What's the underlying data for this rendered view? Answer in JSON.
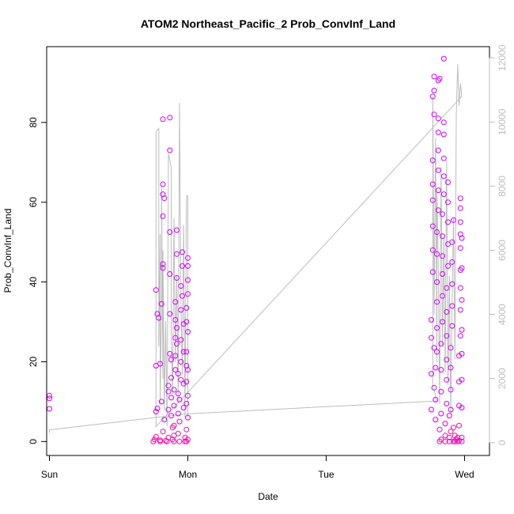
{
  "chart_data": {
    "type": "scatter",
    "title": "ATOM2 Northeast_Pacific_2 Prob_ConvInf_Land",
    "xlabel": "Date",
    "ylabel": "Prob_ConvInf_Land",
    "x_ticks": [
      "Sun",
      "Mon",
      "Tue",
      "Wed"
    ],
    "x_range_days": [
      -0.02,
      3.18
    ],
    "ylim": [
      -3.5,
      99
    ],
    "y_ticks": [
      0,
      20,
      40,
      60,
      80
    ],
    "y2lim": [
      -400,
      12350
    ],
    "y2_ticks": [
      0,
      2000,
      4000,
      6000,
      8000,
      10000,
      12000
    ],
    "colors": {
      "points_low": "#ff00aa",
      "points_high": "#cc00ff",
      "line": "#bdbdbd",
      "right_axis": "#bdbdbd"
    },
    "series": [
      {
        "kind": "points",
        "points": [
          [
            0.0,
            11.5
          ],
          [
            0.0,
            10.8
          ],
          [
            0.0,
            8.2
          ],
          [
            0.75,
            0.0
          ],
          [
            0.76,
            0.5
          ],
          [
            0.77,
            1.2
          ],
          [
            0.77,
            7.5
          ],
          [
            0.78,
            8.3
          ],
          [
            0.77,
            19.0
          ],
          [
            0.77,
            38.0
          ],
          [
            0.78,
            32.0
          ],
          [
            0.79,
            31.0
          ],
          [
            0.8,
            0.0
          ],
          [
            0.8,
            0.3
          ],
          [
            0.8,
            19.5
          ],
          [
            0.81,
            34.5
          ],
          [
            0.82,
            44.5
          ],
          [
            0.82,
            43.5
          ],
          [
            0.82,
            56.5
          ],
          [
            0.83,
            61.0
          ],
          [
            0.82,
            62.0
          ],
          [
            0.82,
            64.5
          ],
          [
            0.82,
            80.8
          ],
          [
            0.81,
            10.0
          ],
          [
            0.82,
            2.5
          ],
          [
            0.83,
            5.5
          ],
          [
            0.84,
            0.2
          ],
          [
            0.85,
            0.0
          ],
          [
            0.86,
            1.0
          ],
          [
            0.86,
            8.0
          ],
          [
            0.86,
            12.5
          ],
          [
            0.86,
            14.0
          ],
          [
            0.87,
            22.0
          ],
          [
            0.87,
            32.0
          ],
          [
            0.87,
            42.0
          ],
          [
            0.87,
            52.5
          ],
          [
            0.87,
            73.0
          ],
          [
            0.87,
            81.2
          ],
          [
            0.88,
            16.0
          ],
          [
            0.88,
            20.5
          ],
          [
            0.88,
            11.0
          ],
          [
            0.88,
            6.5
          ],
          [
            0.89,
            3.5
          ],
          [
            0.89,
            0.5
          ],
          [
            0.9,
            0.0
          ],
          [
            0.9,
            1.5
          ],
          [
            0.9,
            4.0
          ],
          [
            0.9,
            9.0
          ],
          [
            0.9,
            13.0
          ],
          [
            0.91,
            18.0
          ],
          [
            0.91,
            21.5
          ],
          [
            0.91,
            26.0
          ],
          [
            0.91,
            30.5
          ],
          [
            0.91,
            35.0
          ],
          [
            0.92,
            41.0
          ],
          [
            0.92,
            47.0
          ],
          [
            0.92,
            53.0
          ],
          [
            0.92,
            28.5
          ],
          [
            0.92,
            24.5
          ],
          [
            0.93,
            17.0
          ],
          [
            0.93,
            12.0
          ],
          [
            0.93,
            7.0
          ],
          [
            0.93,
            2.0
          ],
          [
            0.94,
            0.0
          ],
          [
            0.94,
            5.0
          ],
          [
            0.94,
            10.5
          ],
          [
            0.95,
            15.5
          ],
          [
            0.95,
            20.0
          ],
          [
            0.95,
            25.5
          ],
          [
            0.95,
            33.0
          ],
          [
            0.95,
            39.0
          ],
          [
            0.96,
            44.0
          ],
          [
            0.96,
            47.5
          ],
          [
            0.96,
            36.5
          ],
          [
            0.97,
            29.5
          ],
          [
            0.97,
            22.5
          ],
          [
            0.97,
            14.5
          ],
          [
            0.97,
            8.5
          ],
          [
            0.98,
            1.0
          ],
          [
            0.98,
            0.0
          ],
          [
            0.99,
            0.0
          ],
          [
            0.99,
            3.0
          ],
          [
            0.99,
            9.5
          ],
          [
            0.99,
            15.0
          ],
          [
            0.99,
            19.0
          ],
          [
            0.99,
            22.5
          ],
          [
            0.99,
            30.0
          ],
          [
            0.99,
            33.5
          ],
          [
            1.0,
            37.0
          ],
          [
            1.0,
            40.5
          ],
          [
            1.0,
            44.0
          ],
          [
            1.0,
            46.0
          ],
          [
            1.0,
            27.5
          ],
          [
            1.0,
            18.0
          ],
          [
            1.0,
            11.5
          ],
          [
            1.0,
            6.0
          ],
          [
            1.0,
            0.5
          ],
          [
            2.76,
            8.0
          ],
          [
            2.76,
            17.0
          ],
          [
            2.76,
            26.0
          ],
          [
            2.76,
            30.5
          ],
          [
            2.77,
            42.5
          ],
          [
            2.77,
            48.0
          ],
          [
            2.77,
            54.0
          ],
          [
            2.77,
            60.5
          ],
          [
            2.77,
            64.5
          ],
          [
            2.77,
            70.5
          ],
          [
            2.78,
            82.0
          ],
          [
            2.77,
            86.5
          ],
          [
            2.78,
            88.0
          ],
          [
            2.78,
            91.5
          ],
          [
            2.78,
            23.5
          ],
          [
            2.78,
            13.5
          ],
          [
            2.79,
            5.5
          ],
          [
            2.79,
            10.5
          ],
          [
            2.79,
            18.5
          ],
          [
            2.8,
            22.5
          ],
          [
            2.8,
            28.5
          ],
          [
            2.8,
            35.0
          ],
          [
            2.8,
            40.0
          ],
          [
            2.8,
            47.0
          ],
          [
            2.8,
            52.5
          ],
          [
            2.81,
            58.0
          ],
          [
            2.81,
            63.0
          ],
          [
            2.81,
            68.0
          ],
          [
            2.81,
            73.0
          ],
          [
            2.81,
            77.5
          ],
          [
            2.81,
            81.0
          ],
          [
            2.81,
            90.5
          ],
          [
            2.82,
            91.0
          ],
          [
            2.82,
            3.0
          ],
          [
            2.82,
            0.0
          ],
          [
            2.83,
            0.5
          ],
          [
            2.83,
            7.0
          ],
          [
            2.83,
            12.5
          ],
          [
            2.83,
            18.0
          ],
          [
            2.83,
            24.5
          ],
          [
            2.84,
            30.0
          ],
          [
            2.84,
            36.5
          ],
          [
            2.84,
            42.0
          ],
          [
            2.84,
            46.5
          ],
          [
            2.84,
            51.5
          ],
          [
            2.84,
            57.0
          ],
          [
            2.85,
            62.0
          ],
          [
            2.85,
            66.5
          ],
          [
            2.85,
            71.0
          ],
          [
            2.85,
            77.0
          ],
          [
            2.85,
            96.0
          ],
          [
            2.85,
            80.0
          ],
          [
            2.86,
            1.5
          ],
          [
            2.86,
            0.0
          ],
          [
            2.86,
            4.5
          ],
          [
            2.87,
            9.5
          ],
          [
            2.87,
            15.5
          ],
          [
            2.87,
            20.5
          ],
          [
            2.87,
            26.5
          ],
          [
            2.87,
            32.5
          ],
          [
            2.87,
            38.5
          ],
          [
            2.88,
            44.0
          ],
          [
            2.88,
            49.5
          ],
          [
            2.88,
            55.0
          ],
          [
            2.88,
            60.0
          ],
          [
            2.88,
            65.0
          ],
          [
            2.89,
            6.5
          ],
          [
            2.89,
            1.0
          ],
          [
            2.89,
            0.0
          ],
          [
            2.9,
            2.5
          ],
          [
            2.9,
            8.0
          ],
          [
            2.9,
            13.0
          ],
          [
            2.9,
            18.5
          ],
          [
            2.9,
            23.5
          ],
          [
            2.91,
            29.0
          ],
          [
            2.91,
            34.0
          ],
          [
            2.91,
            39.5
          ],
          [
            2.91,
            45.0
          ],
          [
            2.91,
            50.0
          ],
          [
            2.92,
            55.5
          ],
          [
            2.92,
            3.5
          ],
          [
            2.92,
            0.0
          ],
          [
            2.93,
            0.0
          ],
          [
            2.93,
            1.5
          ],
          [
            2.94,
            0.5
          ],
          [
            2.95,
            0.0
          ],
          [
            2.95,
            1.0
          ],
          [
            2.96,
            0.2
          ],
          [
            2.96,
            4.0
          ],
          [
            2.96,
            9.0
          ],
          [
            2.96,
            15.0
          ],
          [
            2.96,
            21.5
          ],
          [
            2.97,
            26.5
          ],
          [
            2.97,
            33.0
          ],
          [
            2.97,
            38.5
          ],
          [
            2.97,
            43.0
          ],
          [
            2.97,
            48.5
          ],
          [
            2.97,
            52.0
          ],
          [
            2.97,
            55.0
          ],
          [
            2.97,
            58.5
          ],
          [
            2.97,
            61.0
          ],
          [
            2.98,
            51.0
          ],
          [
            2.98,
            43.5
          ],
          [
            2.98,
            35.5
          ],
          [
            2.98,
            28.0
          ],
          [
            2.98,
            22.0
          ],
          [
            2.98,
            15.5
          ],
          [
            2.98,
            8.5
          ],
          [
            2.98,
            1.0
          ],
          [
            2.98,
            0.0
          ]
        ]
      },
      {
        "kind": "line",
        "axis": "right",
        "points": [
          [
            0.0,
            300
          ],
          [
            0.0,
            400
          ],
          [
            1.0,
            900
          ],
          [
            2.8,
            1300
          ],
          [
            2.77,
            1800
          ],
          [
            2.77,
            10800
          ],
          [
            2.78,
            4000
          ],
          [
            2.79,
            9500
          ],
          [
            2.8,
            2500
          ],
          [
            2.8,
            7800
          ],
          [
            2.81,
            5500
          ],
          [
            2.82,
            1200
          ],
          [
            2.83,
            8600
          ],
          [
            2.84,
            3000
          ],
          [
            2.85,
            6400
          ],
          [
            2.86,
            2200
          ],
          [
            2.87,
            8800
          ],
          [
            2.88,
            1800
          ],
          [
            2.89,
            5200
          ],
          [
            2.9,
            900
          ],
          [
            2.91,
            4400
          ],
          [
            2.92,
            7000
          ],
          [
            2.93,
            2600
          ],
          [
            2.94,
            10200
          ],
          [
            2.95,
            11800
          ],
          [
            2.96,
            10500
          ],
          [
            2.97,
            11200
          ],
          [
            2.98,
            10800
          ],
          [
            0.77,
            500
          ],
          [
            0.77,
            9700
          ],
          [
            0.79,
            9800
          ],
          [
            0.79,
            3000
          ],
          [
            0.8,
            6500
          ],
          [
            0.8,
            1200
          ],
          [
            0.81,
            4500
          ],
          [
            0.81,
            8000
          ],
          [
            0.82,
            2000
          ],
          [
            0.82,
            6000
          ],
          [
            0.83,
            1000
          ],
          [
            0.84,
            3800
          ],
          [
            0.85,
            500
          ],
          [
            0.86,
            9000
          ],
          [
            0.88,
            8600
          ],
          [
            0.88,
            3500
          ],
          [
            0.89,
            1500
          ],
          [
            0.9,
            7000
          ],
          [
            0.91,
            2500
          ],
          [
            0.92,
            5200
          ],
          [
            0.93,
            1300
          ],
          [
            0.94,
            10600
          ],
          [
            0.95,
            4400
          ],
          [
            0.96,
            2100
          ],
          [
            0.97,
            6800
          ],
          [
            0.98,
            800
          ],
          [
            0.99,
            7700
          ],
          [
            1.0,
            7700
          ],
          [
            1.0,
            800
          ]
        ]
      }
    ]
  }
}
